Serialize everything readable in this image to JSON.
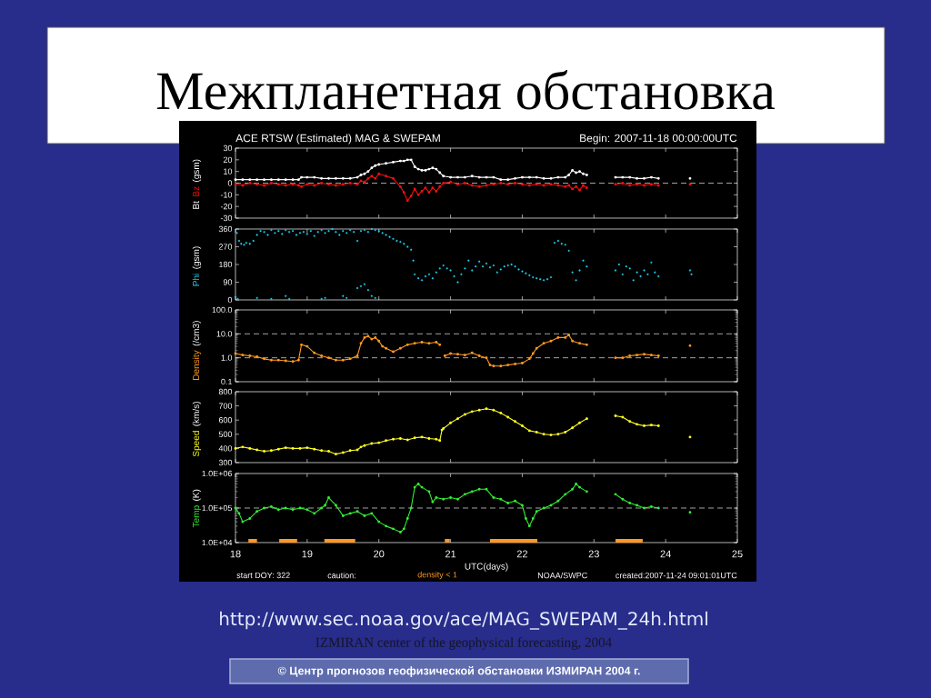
{
  "chart_data": [
    {
      "type": "line",
      "title": "Межпланетная обстановка",
      "subtitle": "ACE RTSW (Estimated) MAG & SWEPAM",
      "annotations": [
        "Begin: 2007-11-18 00:00:00UTC"
      ],
      "ylabel": "(gsm)",
      "marker": "circle",
      "x": [
        18.0,
        18.1,
        18.2,
        18.3,
        18.4,
        18.5,
        18.6,
        18.7,
        18.8,
        18.88,
        18.92,
        19.0,
        19.1,
        19.2,
        19.3,
        19.4,
        19.5,
        19.6,
        19.7,
        19.75,
        19.8,
        19.85,
        19.9,
        19.95,
        20.0,
        20.1,
        20.2,
        20.3,
        20.35,
        20.4,
        20.45,
        20.5,
        20.55,
        20.6,
        20.65,
        20.7,
        20.75,
        20.8,
        20.85,
        20.9,
        21.0,
        21.1,
        21.2,
        21.3,
        21.4,
        21.5,
        21.6,
        21.7,
        21.8,
        21.9,
        22.0,
        22.1,
        22.2,
        22.3,
        22.4,
        22.5,
        22.6,
        22.65,
        22.7,
        22.75,
        22.8,
        22.85,
        22.9,
        23.0,
        23.3,
        23.4,
        23.5,
        23.6,
        23.7,
        23.8,
        23.9,
        24.0,
        24.34
      ],
      "series": [
        {
          "name": "Bt",
          "color": "#ffffff",
          "values": [
            3,
            3,
            3,
            3,
            3,
            3,
            3,
            3,
            3,
            3,
            5,
            5,
            5,
            4,
            4,
            4,
            4,
            4,
            5,
            7,
            8,
            10,
            13,
            15,
            16,
            17,
            18,
            19,
            19,
            20,
            20,
            14,
            12,
            11,
            11,
            12,
            13,
            12,
            9,
            6,
            5,
            5,
            5,
            6,
            5,
            5,
            5,
            3,
            3,
            4,
            5,
            5,
            5,
            4,
            4,
            5,
            5,
            7,
            11,
            9,
            10,
            8,
            7,
            null,
            5,
            5,
            5,
            4,
            4,
            5,
            4,
            null,
            4
          ]
        },
        {
          "name": "Bz",
          "color": "#ee1111",
          "values": [
            -1,
            -2,
            0,
            -1,
            -2,
            0,
            -1,
            -2,
            -1,
            -2,
            -3,
            -1,
            -2,
            0,
            -1,
            -2,
            -1,
            0,
            -1,
            2,
            1,
            4,
            6,
            4,
            8,
            6,
            4,
            -3,
            -8,
            -15,
            -11,
            -5,
            -10,
            -7,
            -4,
            -8,
            -4,
            -7,
            -3,
            0,
            1,
            -1,
            0,
            -2,
            -3,
            -2,
            -1,
            0,
            -1,
            0,
            -1,
            -2,
            -1,
            -2,
            -1,
            -2,
            -3,
            -2,
            -5,
            -3,
            -6,
            -2,
            -4,
            null,
            -1,
            0,
            -2,
            -1,
            -2,
            -1,
            -2,
            null,
            -1
          ]
        }
      ],
      "xlim": [
        18,
        25
      ],
      "xticks": [
        18,
        19,
        20,
        21,
        22,
        23,
        24,
        25
      ],
      "ylim": [
        -30,
        30
      ],
      "yticks": [
        -30,
        -20,
        -10,
        0,
        10,
        20,
        30
      ],
      "tick_labels": "y",
      "ref_lines": [
        {
          "axis": "y",
          "value": 0,
          "color": "#cccccc",
          "line_style": "dashed"
        }
      ]
    },
    {
      "type": "scatter",
      "ylabel": "(gsm)",
      "marker": "circle",
      "x": [
        18.02,
        18.05,
        18.08,
        18.12,
        18.15,
        18.2,
        18.25,
        18.3,
        18.35,
        18.4,
        18.45,
        18.5,
        18.55,
        18.6,
        18.65,
        18.7,
        18.75,
        18.8,
        18.85,
        18.9,
        18.95,
        19.0,
        19.05,
        19.1,
        19.15,
        19.2,
        19.25,
        19.3,
        19.35,
        19.4,
        19.45,
        19.5,
        19.55,
        19.6,
        19.65,
        19.7,
        19.75,
        19.8,
        19.85,
        19.9,
        19.95,
        20.0,
        20.05,
        20.1,
        20.15,
        20.2,
        20.25,
        20.3,
        20.35,
        20.4,
        20.45,
        20.48,
        20.5,
        20.55,
        20.6,
        20.65,
        20.7,
        20.75,
        20.8,
        20.85,
        20.9,
        20.95,
        21.0,
        21.05,
        21.1,
        21.15,
        21.2,
        21.25,
        21.3,
        21.35,
        21.4,
        21.45,
        21.5,
        21.55,
        21.6,
        21.65,
        21.7,
        21.75,
        21.8,
        21.85,
        21.9,
        21.95,
        22.0,
        22.05,
        22.1,
        22.15,
        22.2,
        22.25,
        22.3,
        22.35,
        22.4,
        22.45,
        22.5,
        22.55,
        22.6,
        22.65,
        22.7,
        22.75,
        22.8,
        22.85,
        22.9,
        23.3,
        23.35,
        23.4,
        23.45,
        23.5,
        23.55,
        23.6,
        23.65,
        23.7,
        23.75,
        23.8,
        23.85,
        23.9,
        24.34,
        24.36,
        18.0,
        18.03,
        18.3,
        18.5,
        18.7,
        18.75,
        19.2,
        19.25,
        19.5,
        19.55,
        19.7,
        19.75,
        19.8,
        19.85,
        19.9,
        19.95
      ],
      "series": [
        {
          "name": "Phi",
          "color": "#22ccee",
          "values": [
            340,
            300,
            285,
            280,
            290,
            285,
            300,
            330,
            350,
            345,
            330,
            355,
            340,
            350,
            335,
            355,
            345,
            350,
            330,
            340,
            345,
            335,
            350,
            325,
            345,
            355,
            340,
            350,
            360,
            345,
            330,
            350,
            340,
            355,
            345,
            300,
            350,
            355,
            345,
            360,
            355,
            350,
            340,
            330,
            320,
            310,
            300,
            295,
            285,
            270,
            255,
            200,
            130,
            110,
            100,
            120,
            130,
            110,
            140,
            160,
            175,
            160,
            150,
            120,
            90,
            130,
            160,
            200,
            150,
            170,
            195,
            170,
            185,
            165,
            175,
            140,
            155,
            170,
            175,
            180,
            170,
            155,
            145,
            135,
            125,
            115,
            110,
            105,
            100,
            105,
            115,
            290,
            300,
            285,
            280,
            250,
            140,
            100,
            150,
            200,
            170,
            150,
            180,
            130,
            170,
            160,
            100,
            140,
            120,
            150,
            130,
            190,
            140,
            120,
            150,
            130,
            15,
            5,
            10,
            5,
            20,
            5,
            5,
            10,
            20,
            10,
            60,
            70,
            80,
            50,
            20,
            10
          ]
        }
      ],
      "xlim": [
        18,
        25
      ],
      "xticks": [
        18,
        19,
        20,
        21,
        22,
        23,
        24,
        25
      ],
      "ylim": [
        0,
        360
      ],
      "yticks": [
        0,
        90,
        180,
        270,
        360
      ],
      "tick_labels": "y"
    },
    {
      "type": "line",
      "ylabel": "(/cm3)",
      "log": "y",
      "marker": "circle",
      "x": [
        18.0,
        18.1,
        18.2,
        18.3,
        18.4,
        18.5,
        18.6,
        18.7,
        18.8,
        18.88,
        18.92,
        19.0,
        19.1,
        19.2,
        19.3,
        19.4,
        19.5,
        19.6,
        19.7,
        19.75,
        19.8,
        19.85,
        19.9,
        19.95,
        20.0,
        20.05,
        20.1,
        20.2,
        20.3,
        20.4,
        20.5,
        20.6,
        20.7,
        20.8,
        20.85,
        20.88,
        20.92,
        21.0,
        21.1,
        21.2,
        21.3,
        21.4,
        21.5,
        21.55,
        21.6,
        21.7,
        21.8,
        21.9,
        22.0,
        22.1,
        22.15,
        22.2,
        22.3,
        22.4,
        22.5,
        22.6,
        22.65,
        22.7,
        22.8,
        22.9,
        23.0,
        23.3,
        23.4,
        23.5,
        23.6,
        23.7,
        23.8,
        23.9,
        24.0,
        24.34
      ],
      "series": [
        {
          "name": "Density",
          "color": "#ff9922",
          "values": [
            1.5,
            1.3,
            1.2,
            1.1,
            0.9,
            0.8,
            0.8,
            0.75,
            0.7,
            0.8,
            3.5,
            3,
            1.6,
            1.2,
            1.0,
            0.8,
            0.8,
            0.9,
            1.2,
            4,
            7,
            8,
            6,
            7,
            5,
            3,
            2.5,
            1.8,
            2.5,
            3.5,
            4,
            4.5,
            4,
            4.5,
            3.5,
            null,
            1.2,
            1.5,
            1.4,
            1.3,
            1.6,
            1.2,
            1.0,
            0.5,
            0.45,
            0.45,
            0.5,
            0.55,
            0.6,
            0.9,
            1.5,
            2.5,
            4,
            5,
            7,
            7,
            9,
            5,
            4,
            3.5,
            null,
            1.0,
            1.0,
            1.2,
            1.3,
            1.4,
            1.3,
            1.2,
            null,
            3.2
          ]
        }
      ],
      "xlim": [
        18,
        25
      ],
      "xticks": [
        18,
        19,
        20,
        21,
        22,
        23,
        24,
        25
      ],
      "ylim": [
        0.1,
        100
      ],
      "yticks": [
        0.1,
        {
          "value": 1,
          "label": "1.0"
        },
        {
          "value": 10,
          "label": "10.0"
        },
        {
          "value": 100,
          "label": "100.0"
        }
      ],
      "tick_labels": "y",
      "ref_lines": [
        {
          "axis": "y",
          "value": 1,
          "color": "#cccccc",
          "line_style": "dashed"
        },
        {
          "axis": "y",
          "value": 10,
          "color": "#cccccc",
          "line_style": "dashed"
        }
      ]
    },
    {
      "type": "line",
      "ylabel": "(km/s)",
      "marker": "circle",
      "x": [
        18.0,
        18.1,
        18.2,
        18.3,
        18.4,
        18.5,
        18.6,
        18.7,
        18.8,
        18.9,
        19.0,
        19.1,
        19.2,
        19.3,
        19.4,
        19.5,
        19.6,
        19.7,
        19.75,
        19.8,
        19.9,
        20.0,
        20.1,
        20.2,
        20.3,
        20.4,
        20.5,
        20.6,
        20.7,
        20.8,
        20.85,
        20.88,
        20.9,
        21.0,
        21.1,
        21.2,
        21.3,
        21.4,
        21.5,
        21.6,
        21.7,
        21.8,
        21.9,
        22.0,
        22.1,
        22.2,
        22.3,
        22.4,
        22.5,
        22.6,
        22.7,
        22.8,
        22.9,
        23.0,
        23.3,
        23.4,
        23.5,
        23.6,
        23.7,
        23.8,
        23.9,
        24.0,
        24.34
      ],
      "series": [
        {
          "name": "Speed",
          "color": "#ffff22",
          "values": [
            400,
            410,
            400,
            390,
            380,
            385,
            395,
            405,
            400,
            400,
            405,
            395,
            385,
            380,
            360,
            370,
            385,
            390,
            410,
            420,
            435,
            440,
            455,
            465,
            470,
            460,
            475,
            480,
            470,
            465,
            455,
            530,
            540,
            580,
            610,
            640,
            660,
            670,
            680,
            670,
            650,
            620,
            590,
            560,
            525,
            515,
            500,
            495,
            500,
            515,
            545,
            580,
            610,
            null,
            630,
            620,
            590,
            570,
            560,
            565,
            560,
            null,
            480
          ]
        }
      ],
      "xlim": [
        18,
        25
      ],
      "xticks": [
        18,
        19,
        20,
        21,
        22,
        23,
        24,
        25
      ],
      "ylim": [
        300,
        800
      ],
      "yticks": [
        300,
        400,
        500,
        600,
        700,
        800
      ],
      "tick_labels": "y"
    },
    {
      "type": "line",
      "ylabel": "(K)",
      "xlabel": "UTC(days)",
      "log": "y",
      "marker": "circle",
      "x": [
        18.0,
        18.05,
        18.1,
        18.2,
        18.3,
        18.4,
        18.5,
        18.6,
        18.7,
        18.8,
        18.9,
        19.0,
        19.1,
        19.2,
        19.25,
        19.3,
        19.4,
        19.5,
        19.6,
        19.7,
        19.8,
        19.9,
        20.0,
        20.1,
        20.2,
        20.3,
        20.35,
        20.4,
        20.45,
        20.5,
        20.55,
        20.6,
        20.7,
        20.75,
        20.8,
        20.9,
        21.0,
        21.1,
        21.2,
        21.3,
        21.4,
        21.5,
        21.6,
        21.7,
        21.8,
        21.9,
        22.0,
        22.05,
        22.1,
        22.15,
        22.2,
        22.3,
        22.4,
        22.5,
        22.6,
        22.7,
        22.75,
        22.8,
        22.9,
        23.0,
        23.3,
        23.4,
        23.5,
        23.6,
        23.7,
        23.8,
        23.9,
        24.0,
        24.34
      ],
      "series": [
        {
          "name": "Temp",
          "color": "#33ee33",
          "values": [
            100000,
            70000,
            40000,
            50000,
            80000,
            100000,
            110000,
            90000,
            100000,
            90000,
            100000,
            90000,
            70000,
            100000,
            120000,
            200000,
            120000,
            60000,
            70000,
            80000,
            60000,
            70000,
            40000,
            30000,
            25000,
            20000,
            25000,
            50000,
            100000,
            400000,
            500000,
            400000,
            300000,
            150000,
            200000,
            180000,
            200000,
            180000,
            250000,
            300000,
            350000,
            350000,
            200000,
            180000,
            140000,
            160000,
            120000,
            50000,
            30000,
            50000,
            80000,
            100000,
            120000,
            160000,
            250000,
            350000,
            500000,
            400000,
            300000,
            null,
            250000,
            180000,
            140000,
            120000,
            100000,
            110000,
            100000,
            null,
            75000
          ]
        }
      ],
      "xlim": [
        18,
        25
      ],
      "xticks": [
        18,
        19,
        20,
        21,
        22,
        23,
        24,
        25
      ],
      "ylim": [
        10000,
        1000000
      ],
      "yticks": [
        {
          "value": 10000,
          "label": "1.0E+04"
        },
        {
          "value": 100000,
          "label": "1.0E+05"
        },
        {
          "value": 1000000,
          "label": "1.0E+06"
        }
      ],
      "ref_lines": [
        {
          "axis": "y",
          "value": 100000,
          "color": "#cccccc",
          "line_style": "dashed"
        }
      ],
      "bands": [
        {
          "axis": "x",
          "from": 18.18,
          "to": 18.3,
          "color": "#ff9922"
        },
        {
          "axis": "x",
          "from": 18.61,
          "to": 18.86,
          "color": "#ff9922"
        },
        {
          "axis": "x",
          "from": 19.24,
          "to": 19.67,
          "color": "#ff9922"
        },
        {
          "axis": "x",
          "from": 20.92,
          "to": 20.99,
          "color": "#ff9922"
        },
        {
          "axis": "x",
          "from": 21.55,
          "to": 22.21,
          "color": "#ff9922"
        },
        {
          "axis": "x",
          "from": 23.3,
          "to": 23.68,
          "color": "#ff9922"
        }
      ],
      "annotations": [
        "start DOY: 322",
        "caution:",
        "density < 1",
        "NOAA/SWPC",
        "created:2007-11-24 09:01:01UTC",
        "http://www.sec.noaa.gov/ace/MAG_SWEPAM_24h.html",
        "© Центр прогнозов геофизической обстановки ИЗМИРАН 2004 г.",
        "IZMIRAN center of the geophysical forecasting, 2004"
      ]
    }
  ]
}
